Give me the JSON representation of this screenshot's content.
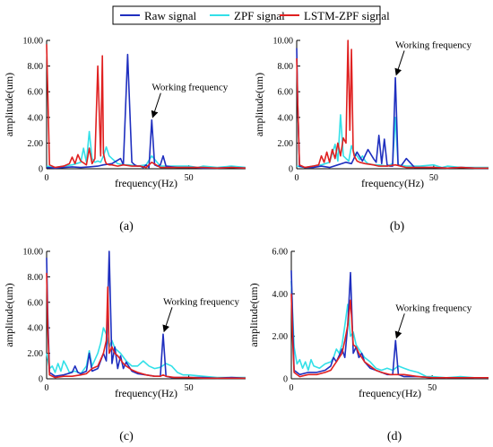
{
  "legend": {
    "placement": "top-center",
    "items": [
      {
        "label": "Raw signal",
        "color": "#1f2fbf"
      },
      {
        "label": "ZPF signal",
        "color": "#33e0e8"
      },
      {
        "label": "LSTM-ZPF signal",
        "color": "#e02020"
      }
    ]
  },
  "chart_data": [
    {
      "type": "line",
      "panel_label": "(a)",
      "xlabel": "frequency(Hz)",
      "ylabel": "amplitude(um)",
      "xlim": [
        0,
        70
      ],
      "ylim": [
        0,
        10
      ],
      "xticks": [
        0,
        50
      ],
      "xtick_labels": [
        "0",
        "50"
      ],
      "yticks": [
        0,
        2,
        4,
        6,
        8,
        10
      ],
      "ytick_labels": [
        "0",
        "2.00",
        "4.00",
        "6.00",
        "8.00",
        "10.00"
      ],
      "grid": false,
      "annotation": {
        "text": "Working frequency",
        "x": 37,
        "y": 3.8
      },
      "series": [
        {
          "name": "Raw signal",
          "color": "#1f2fbf",
          "x": [
            0,
            3,
            6,
            9,
            12,
            15,
            18,
            20,
            23,
            24.5,
            26,
            27,
            28.5,
            30,
            31,
            32,
            33,
            34,
            35,
            36,
            37,
            38,
            39,
            40,
            41,
            42,
            44,
            46,
            48,
            50,
            52,
            55,
            60,
            65,
            70
          ],
          "y": [
            0.1,
            0.05,
            0.1,
            0.15,
            0.1,
            0.15,
            0.2,
            0.3,
            0.4,
            0.6,
            0.8,
            0.3,
            8.9,
            0.5,
            0.3,
            0.2,
            0.2,
            0.1,
            0.3,
            0.1,
            3.8,
            0.3,
            0.2,
            0.3,
            1.0,
            0.2,
            0.15,
            0.1,
            0.1,
            0.1,
            0.1,
            0.05,
            0.05,
            0.1,
            0.05
          ]
        },
        {
          "name": "ZPF signal",
          "color": "#33e0e8",
          "x": [
            0,
            3,
            6,
            9,
            12,
            13,
            14,
            15,
            16,
            17,
            18,
            19,
            20,
            21,
            22,
            23,
            24,
            25,
            27,
            29,
            32,
            35,
            37,
            40,
            45,
            50,
            53,
            55,
            60,
            65,
            70
          ],
          "y": [
            0.2,
            0.1,
            0.2,
            0.3,
            0.5,
            1.6,
            0.5,
            2.9,
            0.8,
            0.5,
            0.6,
            0.5,
            1.0,
            1.7,
            1.0,
            0.8,
            0.6,
            0.4,
            0.3,
            0.3,
            0.2,
            0.3,
            1.0,
            0.2,
            0.2,
            0.2,
            0.1,
            0.2,
            0.1,
            0.2,
            0.1
          ]
        },
        {
          "name": "LSTM-ZPF signal",
          "color": "#e02020",
          "x": [
            0,
            0.4,
            1,
            3,
            6,
            8,
            9,
            10,
            11,
            12,
            14,
            15,
            16,
            17,
            18,
            19,
            19.6,
            20,
            20.6,
            21,
            22,
            23,
            25,
            27,
            30,
            33,
            35,
            37,
            40,
            45,
            50,
            55,
            60,
            65,
            70
          ],
          "y": [
            9.7,
            6,
            0.3,
            0.1,
            0.2,
            0.4,
            0.9,
            0.4,
            1.1,
            0.6,
            0.3,
            1.6,
            0.4,
            0.8,
            8.0,
            1.0,
            8.8,
            1.2,
            0.6,
            0.4,
            0.3,
            0.3,
            0.2,
            0.3,
            0.2,
            0.2,
            0.1,
            0.5,
            0.1,
            0.1,
            0.1,
            0.1,
            0.05,
            0.1,
            0.05
          ]
        }
      ]
    },
    {
      "type": "line",
      "panel_label": "(b)",
      "xlabel": "frequency(Hz)",
      "ylabel": "amplitude(um)",
      "xlim": [
        0,
        70
      ],
      "ylim": [
        0,
        10
      ],
      "xticks": [
        0,
        50
      ],
      "xtick_labels": [
        "0",
        "50"
      ],
      "yticks": [
        0,
        2,
        4,
        6,
        8,
        10
      ],
      "ytick_labels": [
        "0",
        "2.00",
        "4.00",
        "6.00",
        "8.00",
        "10.00"
      ],
      "grid": false,
      "annotation": {
        "text": "Working frequency",
        "x": 36,
        "y": 7.1
      },
      "series": [
        {
          "name": "Raw signal",
          "color": "#1f2fbf",
          "x": [
            0,
            0.4,
            1,
            3,
            6,
            9,
            12,
            15,
            18,
            20,
            22,
            24,
            26,
            28,
            29,
            30,
            31,
            32,
            33,
            34,
            35,
            36,
            37,
            38,
            40,
            43,
            45,
            50,
            55,
            60,
            65,
            70
          ],
          "y": [
            9.4,
            5,
            0.2,
            0.1,
            0.1,
            0.2,
            0.1,
            0.3,
            0.5,
            0.4,
            1.3,
            0.6,
            1.5,
            0.8,
            0.5,
            2.6,
            0.4,
            2.3,
            0.3,
            0.2,
            0.2,
            7.1,
            0.3,
            0.2,
            0.8,
            0.1,
            0.1,
            0.1,
            0.05,
            0.1,
            0.05,
            0.05
          ]
        },
        {
          "name": "ZPF signal",
          "color": "#33e0e8",
          "x": [
            0,
            3,
            6,
            9,
            12,
            14,
            15,
            16,
            17,
            18,
            19,
            20,
            21,
            22,
            23,
            24,
            25,
            26,
            28,
            30,
            33,
            35,
            36,
            37,
            40,
            45,
            50,
            53,
            55,
            60,
            65,
            70
          ],
          "y": [
            0.2,
            0.1,
            0.2,
            0.3,
            0.5,
            1.9,
            0.6,
            4.2,
            1.0,
            0.8,
            0.6,
            1.8,
            1.2,
            1.0,
            0.7,
            1.0,
            0.6,
            0.4,
            0.3,
            0.3,
            0.2,
            0.4,
            4.0,
            0.3,
            0.2,
            0.2,
            0.3,
            0.1,
            0.2,
            0.1,
            0.1,
            0.1
          ]
        },
        {
          "name": "LSTM-ZPF signal",
          "color": "#e02020",
          "x": [
            0,
            0.4,
            1,
            3,
            6,
            8,
            9,
            10,
            11,
            12,
            13,
            14,
            15,
            16,
            17,
            18,
            18.7,
            19.4,
            20,
            20.6,
            21,
            22,
            23,
            25,
            28,
            30,
            33,
            36,
            40,
            45,
            50,
            55,
            60,
            65,
            70
          ],
          "y": [
            8.6,
            5,
            0.3,
            0.1,
            0.2,
            0.3,
            1.0,
            0.5,
            1.3,
            0.5,
            1.5,
            0.8,
            2.0,
            1.0,
            2.4,
            2.0,
            10.0,
            3.0,
            9.3,
            1.4,
            1.0,
            0.6,
            0.5,
            0.4,
            0.3,
            0.2,
            0.2,
            0.3,
            0.1,
            0.1,
            0.1,
            0.05,
            0.1,
            0.05,
            0.05
          ]
        }
      ]
    },
    {
      "type": "line",
      "panel_label": "(c)",
      "xlabel": "frequency(Hz)",
      "ylabel": "amplitude(um)",
      "xlim": [
        0,
        70
      ],
      "ylim": [
        0,
        10
      ],
      "xticks": [
        0,
        50
      ],
      "xtick_labels": [
        "0",
        "50"
      ],
      "yticks": [
        0,
        2,
        4,
        6,
        8,
        10
      ],
      "ytick_labels": [
        "0",
        "2.00",
        "4.00",
        "6.00",
        "8.00",
        "10.00"
      ],
      "grid": false,
      "annotation": {
        "text": "Working frequency",
        "x": 41,
        "y": 3.5
      },
      "series": [
        {
          "name": "Raw signal",
          "color": "#1f2fbf",
          "x": [
            0,
            0.4,
            1,
            3,
            6,
            9,
            10,
            11,
            12,
            14,
            15,
            16,
            18,
            20,
            21,
            22,
            23,
            24,
            25,
            26,
            27,
            28,
            30,
            32,
            35,
            38,
            40,
            41,
            42,
            44,
            48,
            50,
            55,
            60,
            65,
            70
          ],
          "y": [
            9.5,
            5,
            0.5,
            0.2,
            0.3,
            0.5,
            1.0,
            0.5,
            0.4,
            0.6,
            2.0,
            0.6,
            0.8,
            2.0,
            1.4,
            10.0,
            1.2,
            2.5,
            0.8,
            1.8,
            0.8,
            1.3,
            0.6,
            0.4,
            0.3,
            0.2,
            0.2,
            3.5,
            0.2,
            0.1,
            0.1,
            0.1,
            0.1,
            0.05,
            0.1,
            0.05
          ]
        },
        {
          "name": "ZPF signal",
          "color": "#33e0e8",
          "x": [
            0,
            1,
            2,
            3,
            4,
            5,
            6,
            7,
            8,
            10,
            12,
            14,
            15,
            16,
            17,
            18,
            19,
            20,
            21,
            22,
            23,
            24,
            26,
            28,
            30,
            32,
            34,
            36,
            38,
            40,
            42,
            44,
            46,
            48,
            50,
            55,
            60,
            65,
            70
          ],
          "y": [
            2,
            0.8,
            1.0,
            0.5,
            1.2,
            0.6,
            1.4,
            1.0,
            0.5,
            0.6,
            0.4,
            1.0,
            2.2,
            1.0,
            1.5,
            2.0,
            2.8,
            4.0,
            3.5,
            2.5,
            3.0,
            2.4,
            2.0,
            1.4,
            1.0,
            1.0,
            1.4,
            1.0,
            0.8,
            0.9,
            1.2,
            1.0,
            0.5,
            0.3,
            0.3,
            0.2,
            0.1,
            0.1,
            0.1
          ]
        },
        {
          "name": "LSTM-ZPF signal",
          "color": "#e02020",
          "x": [
            0,
            0.4,
            1,
            3,
            6,
            9,
            12,
            14,
            16,
            18,
            19,
            20,
            21,
            21.5,
            22,
            23,
            24,
            25,
            26,
            27,
            28,
            30,
            32,
            35,
            38,
            40,
            41,
            42,
            45,
            50,
            55,
            60,
            65,
            70
          ],
          "y": [
            8.3,
            4,
            0.3,
            0.1,
            0.2,
            0.2,
            0.3,
            0.4,
            0.8,
            1.0,
            1.5,
            2.0,
            3.0,
            7.2,
            2.0,
            2.5,
            2.0,
            1.8,
            1.5,
            1.2,
            1.0,
            0.7,
            0.5,
            0.3,
            0.2,
            0.2,
            0.3,
            0.2,
            0.1,
            0.1,
            0.05,
            0.05,
            0.05,
            0.05
          ]
        }
      ]
    },
    {
      "type": "line",
      "panel_label": "(d)",
      "xlabel": "frequency(Hz)",
      "ylabel": "amplitude(um)",
      "xlim": [
        0,
        70
      ],
      "ylim": [
        0,
        6
      ],
      "xticks": [
        0,
        50
      ],
      "xtick_labels": [
        "0",
        "50"
      ],
      "yticks": [
        0,
        2,
        4,
        6
      ],
      "ytick_labels": [
        "0",
        "2.00",
        "4.00",
        "6.00"
      ],
      "grid": false,
      "annotation": {
        "text": "Working frequency",
        "x": 37,
        "y": 1.8
      },
      "series": [
        {
          "name": "Raw signal",
          "color": "#1f2fbf",
          "x": [
            0,
            0.4,
            1,
            3,
            6,
            9,
            12,
            14,
            15,
            16,
            18,
            19,
            20,
            21,
            22,
            23,
            24,
            25,
            26,
            28,
            30,
            32,
            34,
            36,
            37,
            38,
            40,
            45,
            50,
            55,
            60,
            65,
            70
          ],
          "y": [
            5.1,
            3,
            0.4,
            0.2,
            0.3,
            0.3,
            0.4,
            0.6,
            1.0,
            0.8,
            1.4,
            1.0,
            2.5,
            5.0,
            1.2,
            1.5,
            1.0,
            1.2,
            0.8,
            0.5,
            0.4,
            0.3,
            0.2,
            0.2,
            1.8,
            0.2,
            0.1,
            0.1,
            0.05,
            0.05,
            0.05,
            0.05,
            0.05
          ]
        },
        {
          "name": "ZPF signal",
          "color": "#33e0e8",
          "x": [
            0,
            1,
            2,
            3,
            4,
            5,
            6,
            7,
            8,
            10,
            12,
            14,
            15,
            16,
            17,
            18,
            19,
            20,
            21,
            22,
            23,
            24,
            26,
            28,
            30,
            32,
            34,
            36,
            38,
            40,
            42,
            45,
            48,
            50,
            55,
            60,
            65,
            70
          ],
          "y": [
            4.6,
            1.5,
            0.7,
            0.9,
            0.5,
            0.8,
            0.4,
            0.9,
            0.6,
            0.5,
            0.7,
            0.8,
            1.0,
            1.4,
            1.2,
            1.6,
            2.5,
            3.5,
            2.0,
            2.2,
            1.6,
            1.4,
            1.0,
            0.8,
            0.5,
            0.4,
            0.5,
            0.4,
            0.6,
            0.5,
            0.4,
            0.3,
            0.1,
            0.1,
            0.05,
            0.1,
            0.05,
            0.05
          ]
        },
        {
          "name": "LSTM-ZPF signal",
          "color": "#e02020",
          "x": [
            0,
            0.4,
            1,
            3,
            6,
            9,
            12,
            14,
            15,
            16,
            17,
            18,
            19,
            20,
            21,
            22,
            23,
            24,
            25,
            26,
            28,
            30,
            32,
            35,
            38,
            40,
            45,
            50,
            55,
            60,
            65,
            70
          ],
          "y": [
            4.0,
            2,
            0.3,
            0.1,
            0.2,
            0.2,
            0.3,
            0.4,
            0.6,
            0.8,
            1.0,
            1.2,
            1.8,
            2.5,
            3.7,
            1.6,
            1.5,
            1.2,
            1.0,
            0.8,
            0.6,
            0.4,
            0.3,
            0.2,
            0.2,
            0.2,
            0.1,
            0.05,
            0.05,
            0.05,
            0.05,
            0.05
          ]
        }
      ]
    }
  ]
}
